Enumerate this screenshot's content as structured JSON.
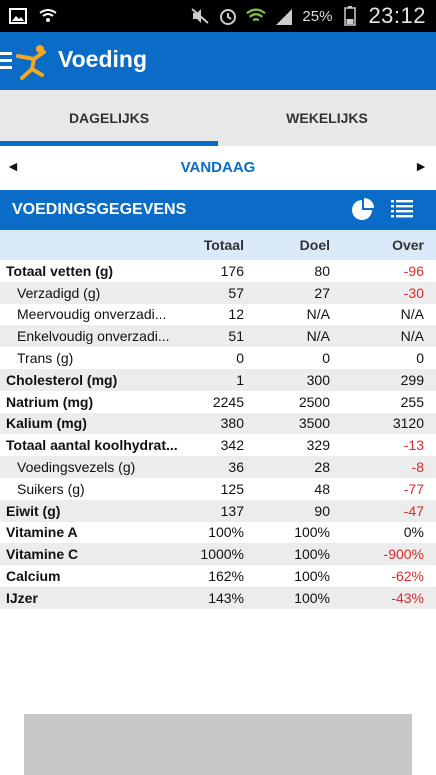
{
  "statusbar": {
    "battery": "25%",
    "time": "23:12"
  },
  "appbar": {
    "title": "Voeding"
  },
  "tabs": [
    {
      "label": "DAGELIJKS",
      "active": true
    },
    {
      "label": "WEKELIJKS",
      "active": false
    }
  ],
  "date_nav": {
    "label": "VANDAAG",
    "prev_arrow": "◄",
    "next_arrow": "►"
  },
  "section": {
    "title": "VOEDINGSGEGEVENS"
  },
  "table": {
    "headers": {
      "name": "",
      "totaal": "Totaal",
      "doel": "Doel",
      "over": "Over"
    },
    "rows": [
      {
        "name": "Totaal vetten (g)",
        "totaal": "176",
        "doel": "80",
        "over": "-96"
      },
      {
        "name": "Verzadigd (g)",
        "totaal": "57",
        "doel": "27",
        "over": "-30"
      },
      {
        "name": "Meervoudig onverzadi...",
        "totaal": "12",
        "doel": "N/A",
        "over": "N/A"
      },
      {
        "name": "Enkelvoudig onverzadi...",
        "totaal": "51",
        "doel": "N/A",
        "over": "N/A"
      },
      {
        "name": "Trans (g)",
        "totaal": "0",
        "doel": "0",
        "over": "0"
      },
      {
        "name": "Cholesterol (mg)",
        "totaal": "1",
        "doel": "300",
        "over": "299"
      },
      {
        "name": "Natrium (mg)",
        "totaal": "2245",
        "doel": "2500",
        "over": "255"
      },
      {
        "name": "Kalium (mg)",
        "totaal": "380",
        "doel": "3500",
        "over": "3120"
      },
      {
        "name": "Totaal aantal koolhydrat...",
        "totaal": "342",
        "doel": "329",
        "over": "-13"
      },
      {
        "name": "Voedingsvezels (g)",
        "totaal": "36",
        "doel": "28",
        "over": "-8"
      },
      {
        "name": "Suikers (g)",
        "totaal": "125",
        "doel": "48",
        "over": "-77"
      },
      {
        "name": "Eiwit (g)",
        "totaal": "137",
        "doel": "90",
        "over": "-47"
      },
      {
        "name": "Vitamine A",
        "totaal": "100%",
        "doel": "100%",
        "over": "0%"
      },
      {
        "name": "Vitamine C",
        "totaal": "1000%",
        "doel": "100%",
        "over": "-900%"
      },
      {
        "name": "Calcium",
        "totaal": "162%",
        "doel": "100%",
        "over": "-62%"
      },
      {
        "name": "IJzer",
        "totaal": "143%",
        "doel": "100%",
        "over": "-43%"
      }
    ]
  },
  "colors": {
    "primary": "#0a6cc6",
    "negative": "#d62b2b",
    "header_row": "#daeaf8",
    "alt_row": "#ececec"
  }
}
